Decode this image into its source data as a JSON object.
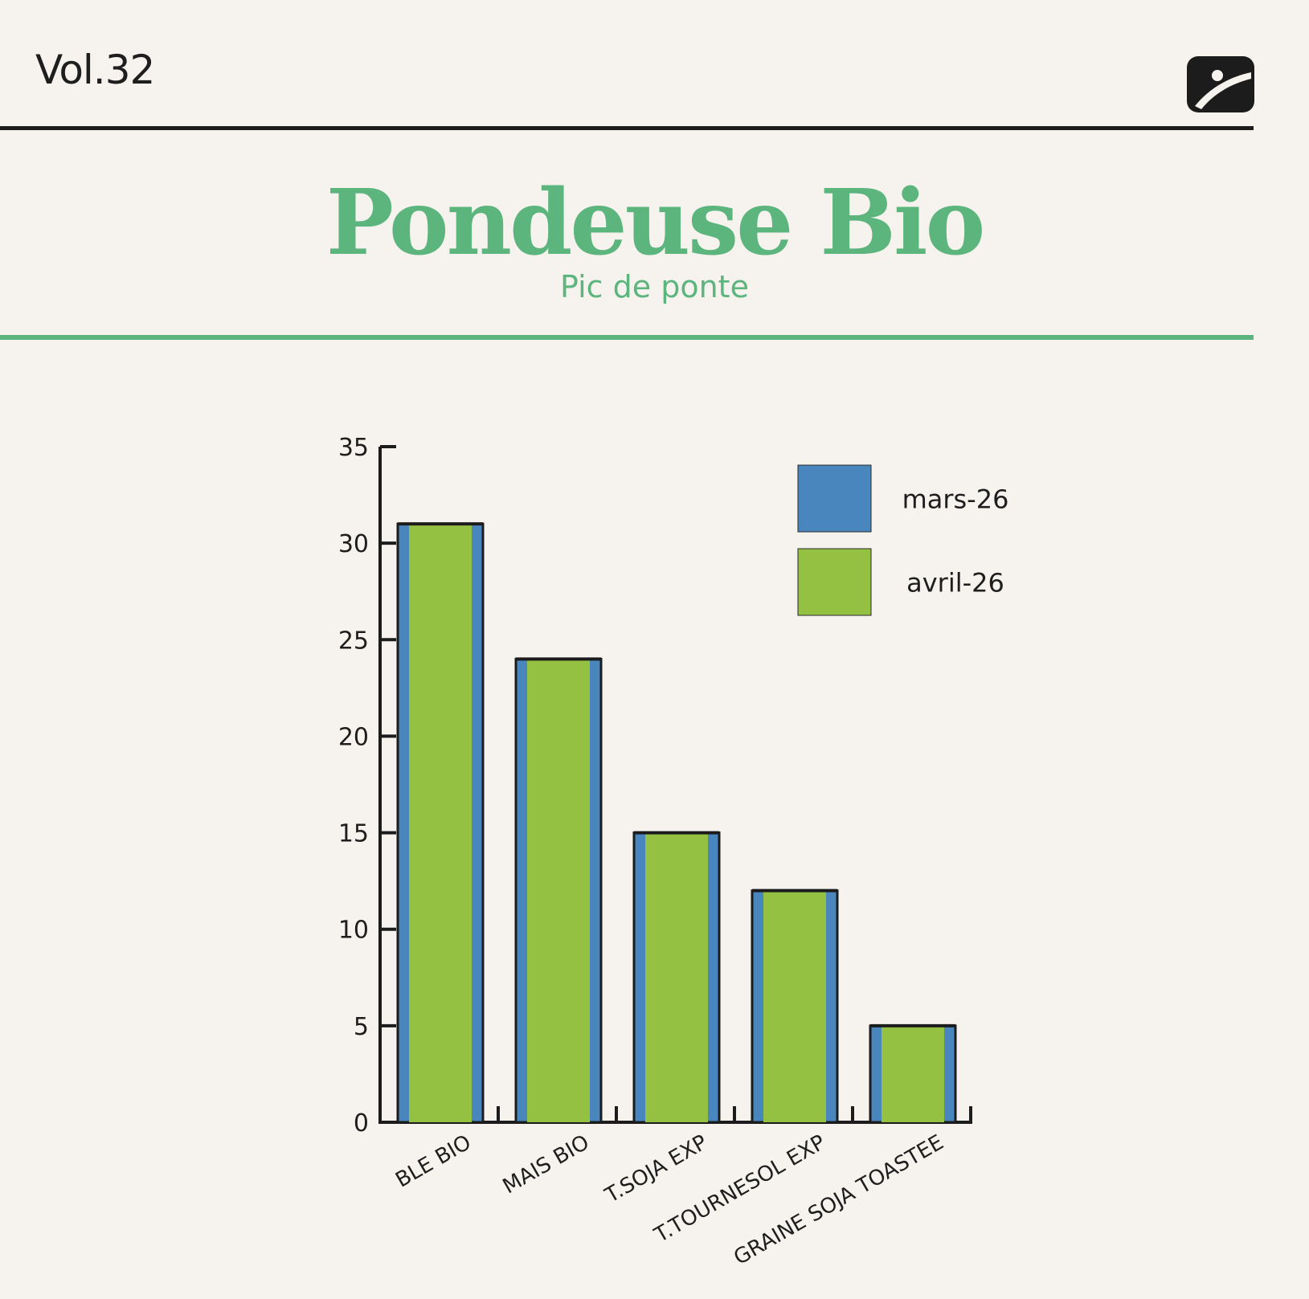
{
  "header": {
    "volume": "Vol.32",
    "title": "Pondeuse Bio",
    "subtitle": "Pic de ponte",
    "logo_icon": "brand-logo-icon"
  },
  "colors": {
    "title_green": "#5db57e",
    "series_mars": "#4a86be",
    "series_avril": "#94c142",
    "ink": "#1c1c1c"
  },
  "chart_data": {
    "type": "bar",
    "categories": [
      "BLE BIO",
      "MAIS BIO",
      "T.SOJA EXP",
      "T.TOURNESOL EXP",
      "GRAINE SOJA TOASTEE"
    ],
    "series": [
      {
        "name": "mars-26",
        "values": [
          31,
          24,
          15,
          12,
          5
        ],
        "color": "#4a86be"
      },
      {
        "name": "avril-26",
        "values": [
          31,
          24,
          15,
          12,
          5
        ],
        "color": "#94c142"
      }
    ],
    "ylim": [
      0,
      35
    ],
    "yticks": [
      0,
      5,
      10,
      15,
      20,
      25,
      30,
      35
    ],
    "grid": false,
    "legend": "top-right"
  }
}
